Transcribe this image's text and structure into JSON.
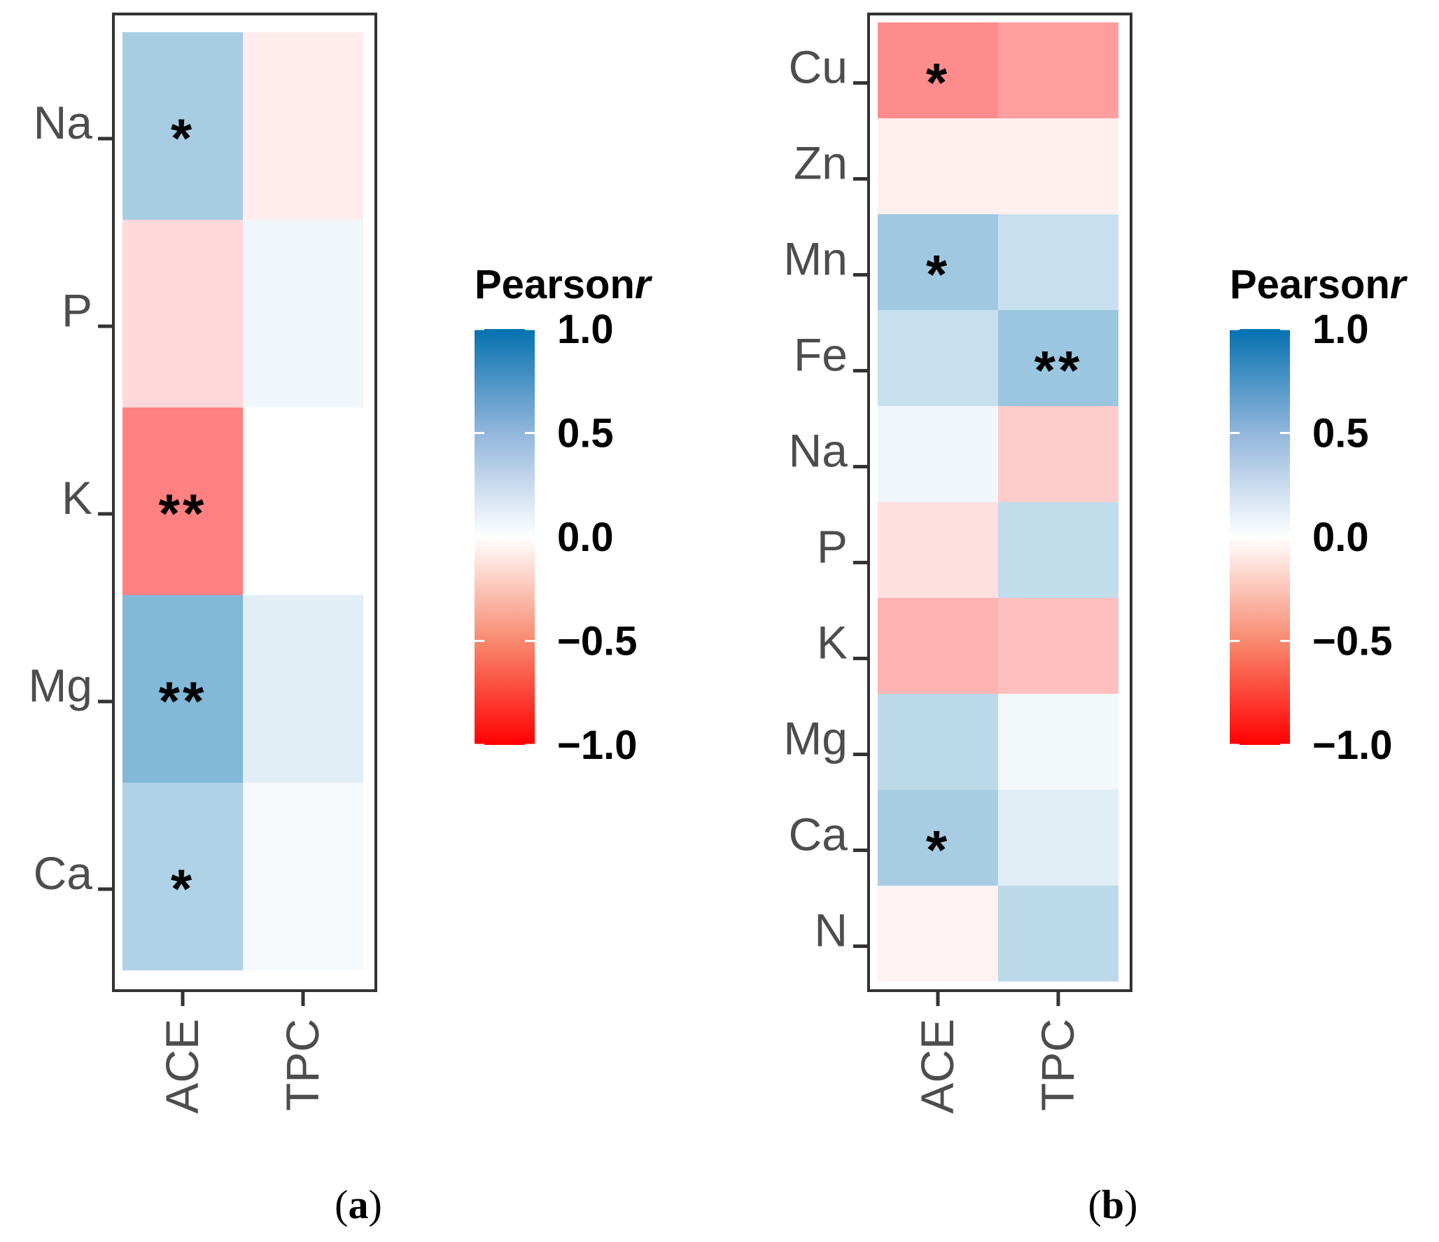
{
  "chart_data": [
    {
      "type": "heatmap",
      "panel_label": "a",
      "x_categories": [
        "ACE",
        "TPC"
      ],
      "y_categories": [
        "Na",
        "P",
        "K",
        "Mg",
        "Ca"
      ],
      "cells": [
        [
          0.35,
          -0.07
        ],
        [
          -0.15,
          0.06
        ],
        [
          -0.5,
          0.0
        ],
        [
          0.5,
          0.12
        ],
        [
          0.32,
          0.04
        ]
      ],
      "significance": [
        [
          "*",
          ""
        ],
        [
          "",
          ""
        ],
        [
          "**",
          ""
        ],
        [
          "**",
          ""
        ],
        [
          "*",
          ""
        ]
      ],
      "legend": {
        "title": "Pearson",
        "title_italic": "r",
        "range": [
          -1.0,
          1.0
        ],
        "ticks": [
          "1.0",
          "0.5",
          "0.0",
          "−0.5",
          "−1.0"
        ],
        "tick_values": [
          1.0,
          0.5,
          0.0,
          -0.5,
          -1.0
        ],
        "colors": {
          "high": "#0571b0",
          "mid": "#ffffff",
          "low": "#ff0000"
        }
      }
    },
    {
      "type": "heatmap",
      "panel_label": "b",
      "x_categories": [
        "ACE",
        "TPC"
      ],
      "y_categories": [
        "Cu",
        "Zn",
        "Mn",
        "Fe",
        "Na",
        "P",
        "K",
        "Mg",
        "Ca",
        "N"
      ],
      "cells": [
        [
          -0.45,
          -0.38
        ],
        [
          -0.06,
          -0.06
        ],
        [
          0.38,
          0.22
        ],
        [
          0.22,
          0.4
        ],
        [
          0.06,
          -0.2
        ],
        [
          -0.12,
          0.25
        ],
        [
          -0.3,
          -0.25
        ],
        [
          0.27,
          0.05
        ],
        [
          0.35,
          0.12
        ],
        [
          -0.05,
          0.27
        ]
      ],
      "significance": [
        [
          "*",
          ""
        ],
        [
          "",
          ""
        ],
        [
          "*",
          ""
        ],
        [
          "",
          "**"
        ],
        [
          "",
          ""
        ],
        [
          "",
          ""
        ],
        [
          "",
          ""
        ],
        [
          "",
          ""
        ],
        [
          "*",
          ""
        ],
        [
          "",
          ""
        ]
      ],
      "legend": {
        "title": "Pearson",
        "title_italic": "r",
        "range": [
          -1.0,
          1.0
        ],
        "ticks": [
          "1.0",
          "0.5",
          "0.0",
          "−0.5",
          "−1.0"
        ],
        "tick_values": [
          1.0,
          0.5,
          0.0,
          -0.5,
          -1.0
        ],
        "colors": {
          "high": "#0571b0",
          "mid": "#ffffff",
          "low": "#ff0000"
        }
      }
    }
  ]
}
